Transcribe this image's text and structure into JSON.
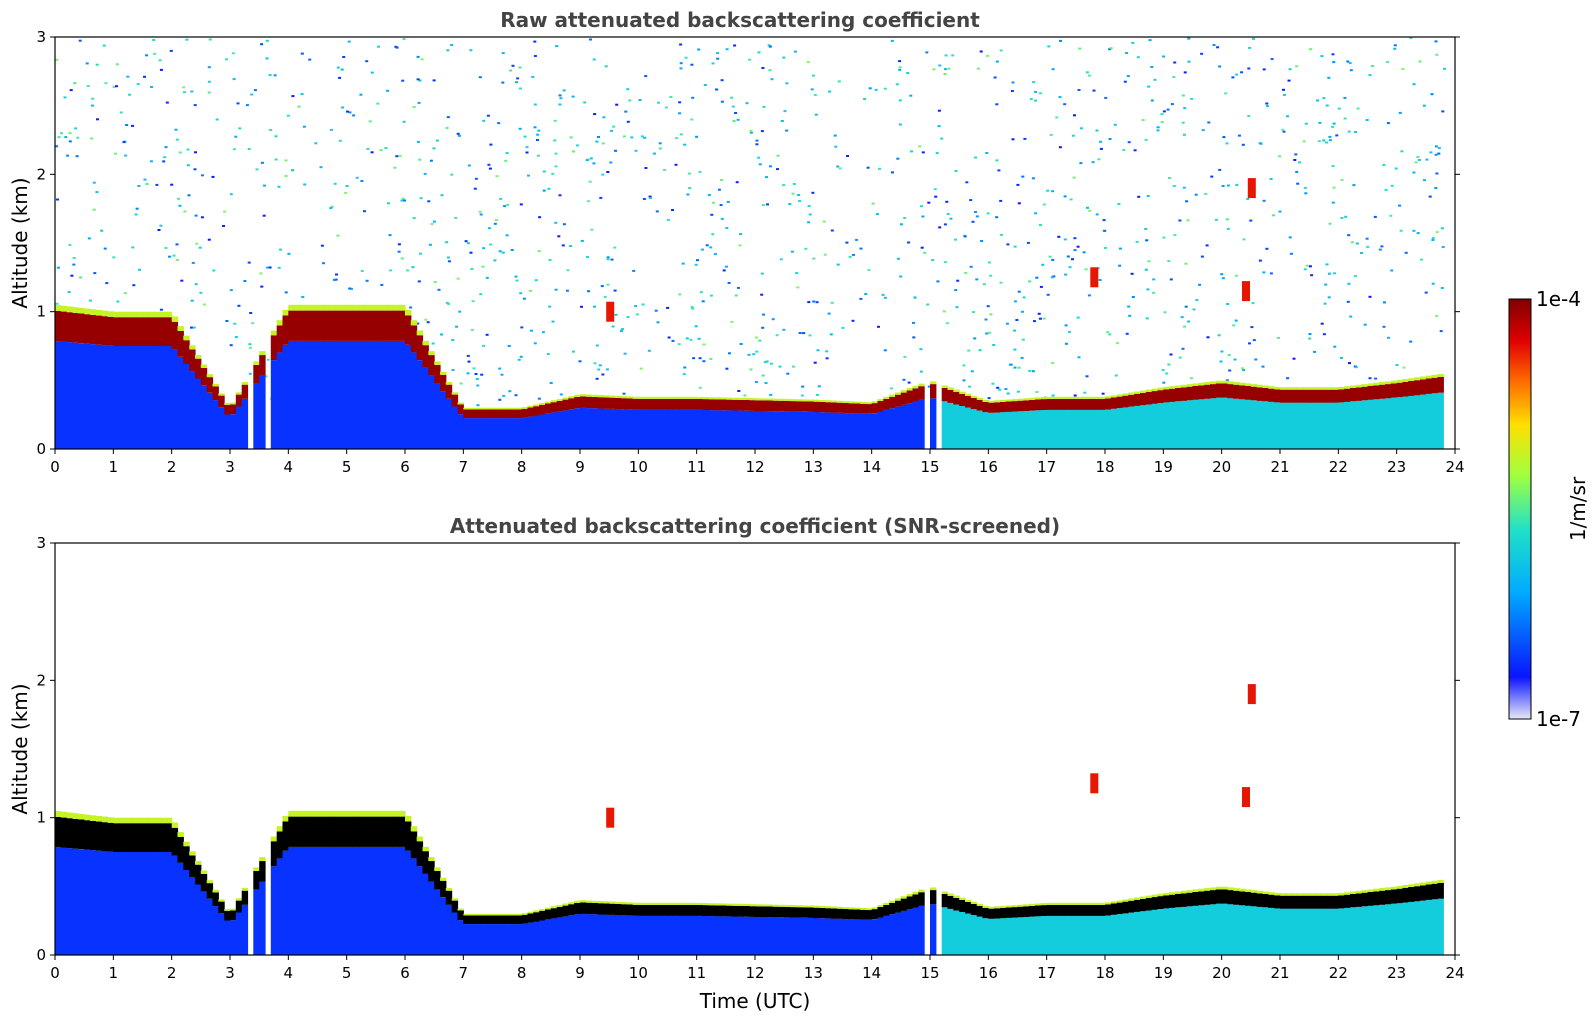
{
  "colors": {
    "colormap_stops": [
      "#e8e8f8",
      "#0a14ff",
      "#00aaff",
      "#20e0c8",
      "#a0ff40",
      "#ffe000",
      "#ff7000",
      "#e00000",
      "#800000"
    ],
    "screened_peak": "#000000",
    "background": "#ffffff"
  },
  "colorbar": {
    "max_label": "1e-4",
    "min_label": "1e-7",
    "unit_label": "1/m/sr",
    "scale": "log"
  },
  "chart_data": [
    {
      "type": "heatmap",
      "title": "Raw attenuated backscattering coefficient",
      "xlabel": "",
      "ylabel": "Altitude (km)",
      "xlim": [
        0,
        24
      ],
      "ylim": [
        0,
        3
      ],
      "xticks": [
        "0",
        "1",
        "2",
        "3",
        "4",
        "5",
        "6",
        "7",
        "8",
        "9",
        "10",
        "11",
        "12",
        "13",
        "14",
        "15",
        "16",
        "17",
        "18",
        "19",
        "20",
        "21",
        "22",
        "23",
        "24"
      ],
      "yticks": [
        "0",
        "1",
        "2",
        "3"
      ],
      "colorscale": "log",
      "zlim": [
        1e-07,
        0.0001
      ],
      "screened": false,
      "layer_top_km": [
        [
          0,
          1.05
        ],
        [
          1,
          1.0
        ],
        [
          2,
          1.0
        ],
        [
          3,
          0.3
        ],
        [
          4,
          1.05
        ],
        [
          5,
          1.05
        ],
        [
          6,
          1.05
        ],
        [
          7,
          0.3
        ],
        [
          8,
          0.3
        ],
        [
          9,
          0.4
        ],
        [
          10,
          0.38
        ],
        [
          11,
          0.38
        ],
        [
          12,
          0.37
        ],
        [
          13,
          0.36
        ],
        [
          14,
          0.34
        ],
        [
          15,
          0.5
        ],
        [
          16,
          0.35
        ],
        [
          17,
          0.38
        ],
        [
          18,
          0.38
        ],
        [
          19,
          0.45
        ],
        [
          20,
          0.5
        ],
        [
          21,
          0.45
        ],
        [
          22,
          0.45
        ],
        [
          23,
          0.5
        ],
        [
          23.8,
          0.55
        ]
      ],
      "data_gaps_hours": [
        [
          3.35,
          3.45
        ],
        [
          3.6,
          3.75
        ],
        [
          14.85,
          14.95
        ],
        [
          15.05,
          15.2
        ]
      ],
      "isolated_cloud_features": [
        {
          "time": 9.5,
          "altitude_km": 1.0
        },
        {
          "time": 17.8,
          "altitude_km": 1.25
        },
        {
          "time": 20.5,
          "altitude_km": 1.9
        },
        {
          "time": 20.4,
          "altitude_km": 1.15
        }
      ]
    },
    {
      "type": "heatmap",
      "title": "Attenuated backscattering coefficient (SNR-screened)",
      "xlabel": "Time (UTC)",
      "ylabel": "Altitude (km)",
      "xlim": [
        0,
        24
      ],
      "ylim": [
        0,
        3
      ],
      "xticks": [
        "0",
        "1",
        "2",
        "3",
        "4",
        "5",
        "6",
        "7",
        "8",
        "9",
        "10",
        "11",
        "12",
        "13",
        "14",
        "15",
        "16",
        "17",
        "18",
        "19",
        "20",
        "21",
        "22",
        "23",
        "24"
      ],
      "yticks": [
        "0",
        "1",
        "2",
        "3"
      ],
      "colorscale": "log",
      "zlim": [
        1e-07,
        0.0001
      ],
      "screened": true,
      "layer_top_km": [
        [
          0,
          1.05
        ],
        [
          1,
          1.0
        ],
        [
          2,
          1.0
        ],
        [
          3,
          0.3
        ],
        [
          4,
          1.05
        ],
        [
          5,
          1.05
        ],
        [
          6,
          1.05
        ],
        [
          7,
          0.3
        ],
        [
          8,
          0.3
        ],
        [
          9,
          0.4
        ],
        [
          10,
          0.38
        ],
        [
          11,
          0.38
        ],
        [
          12,
          0.37
        ],
        [
          13,
          0.36
        ],
        [
          14,
          0.34
        ],
        [
          15,
          0.5
        ],
        [
          16,
          0.35
        ],
        [
          17,
          0.38
        ],
        [
          18,
          0.38
        ],
        [
          19,
          0.45
        ],
        [
          20,
          0.5
        ],
        [
          21,
          0.45
        ],
        [
          22,
          0.45
        ],
        [
          23,
          0.5
        ],
        [
          23.8,
          0.55
        ]
      ],
      "data_gaps_hours": [
        [
          3.35,
          3.45
        ],
        [
          3.6,
          3.75
        ],
        [
          14.85,
          14.95
        ],
        [
          15.05,
          15.2
        ]
      ],
      "isolated_cloud_features": [
        {
          "time": 9.5,
          "altitude_km": 1.0
        },
        {
          "time": 17.8,
          "altitude_km": 1.25
        },
        {
          "time": 20.5,
          "altitude_km": 1.9
        },
        {
          "time": 20.4,
          "altitude_km": 1.15
        }
      ]
    }
  ]
}
